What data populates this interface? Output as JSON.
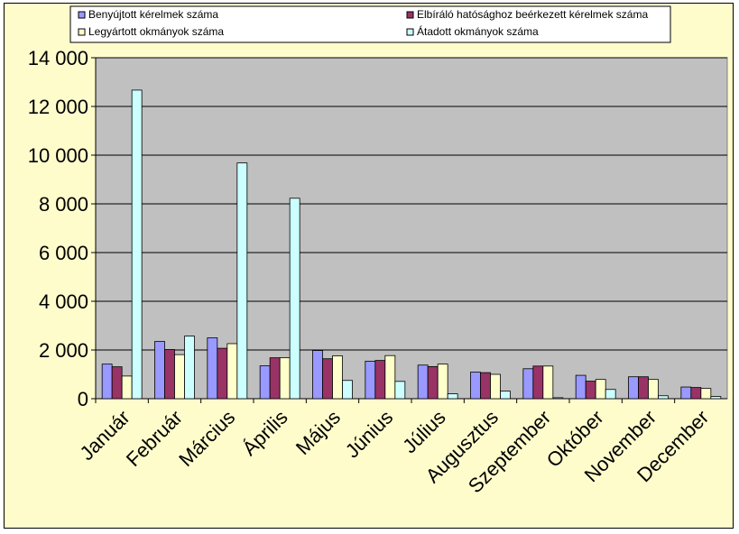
{
  "chart_data": {
    "type": "bar",
    "title": "",
    "xlabel": "",
    "ylabel": "",
    "ylim": [
      0,
      14000
    ],
    "yticks": [
      0,
      2000,
      4000,
      6000,
      8000,
      10000,
      12000,
      14000
    ],
    "ytick_labels": [
      "0",
      "2 000",
      "4 000",
      "6 000",
      "8 000",
      "10 000",
      "12 000",
      "14 000"
    ],
    "grid": true,
    "legend_position": "top",
    "categories": [
      "Január",
      "Február",
      "Március",
      "Április",
      "Május",
      "Június",
      "Július",
      "Augusztus",
      "Szeptember",
      "Október",
      "November",
      "December"
    ],
    "series": [
      {
        "name": "Benyújtott kérelmek száma",
        "color": "#9999ff",
        "values": [
          1420,
          2350,
          2500,
          1350,
          1980,
          1540,
          1380,
          1090,
          1230,
          960,
          900,
          480
        ]
      },
      {
        "name": "Elbíráló hatósághoz beérkezett kérelmek száma",
        "color": "#993366",
        "values": [
          1310,
          2020,
          2070,
          1680,
          1640,
          1570,
          1320,
          1070,
          1340,
          720,
          900,
          460
        ]
      },
      {
        "name": "Legyártott okmányok száma",
        "color": "#ffffcc",
        "values": [
          930,
          1810,
          2260,
          1680,
          1760,
          1770,
          1420,
          1000,
          1340,
          790,
          790,
          420
        ]
      },
      {
        "name": "Átadott okmányok száma",
        "color": "#ccffff",
        "values": [
          12670,
          2570,
          9680,
          8230,
          750,
          710,
          200,
          310,
          40,
          380,
          120,
          90
        ]
      }
    ]
  },
  "colors": {
    "frame_bg": "#fffccc",
    "plot_bg": "#c0c0c0",
    "bar_stroke": "#000000"
  }
}
